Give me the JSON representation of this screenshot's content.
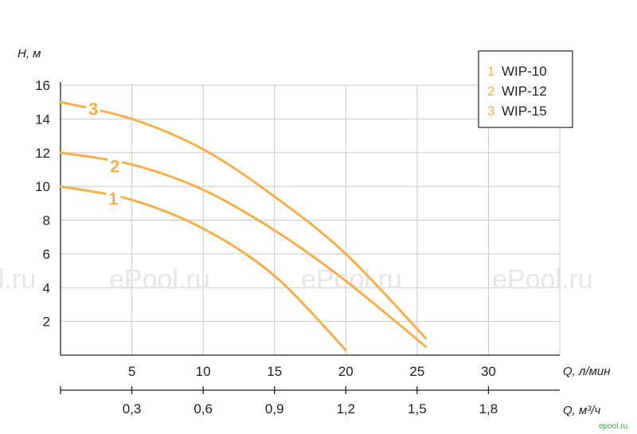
{
  "chart_data": {
    "type": "line",
    "ylabel": "H, м",
    "xlabel": "Q, л/мин",
    "x2label": "Q, м³/ч",
    "ylim": [
      0,
      16
    ],
    "xlim": [
      0,
      35
    ],
    "yticks": [
      2,
      4,
      6,
      8,
      10,
      12,
      14,
      16
    ],
    "xticks": [
      5,
      10,
      15,
      20,
      25,
      30
    ],
    "xtick_labels": [
      "5",
      "10",
      "15",
      "20",
      "25",
      "30"
    ],
    "x2ticks": [
      5,
      10,
      15,
      20,
      25,
      30
    ],
    "x2tick_labels": [
      "0,3",
      "0,6",
      "0,9",
      "1,2",
      "1,5",
      "1,8"
    ],
    "grid": true,
    "legend_position": "top-right",
    "color": "#f6b04b",
    "series": [
      {
        "name": "WIP-10",
        "label": "1",
        "x": [
          0,
          5,
          10,
          15,
          20
        ],
        "y": [
          10.0,
          9.2,
          7.5,
          4.7,
          0.3
        ],
        "label_at": [
          3.7,
          9.3
        ]
      },
      {
        "name": "WIP-12",
        "label": "2",
        "x": [
          0,
          5,
          10,
          15,
          20,
          25.6
        ],
        "y": [
          12.0,
          11.3,
          9.8,
          7.4,
          4.4,
          0.5
        ],
        "label_at": [
          3.8,
          11.2
        ]
      },
      {
        "name": "WIP-15",
        "label": "3",
        "x": [
          0,
          5,
          10,
          15,
          20,
          25.6
        ],
        "y": [
          15.0,
          14.0,
          12.2,
          9.4,
          6.0,
          1.0
        ],
        "label_at": [
          2.3,
          14.6
        ]
      }
    ]
  },
  "watermarks": [
    "l.ru",
    "ePool.ru",
    "ePool.ru",
    "ePool.ru"
  ],
  "corner_mark": "epool.ru"
}
